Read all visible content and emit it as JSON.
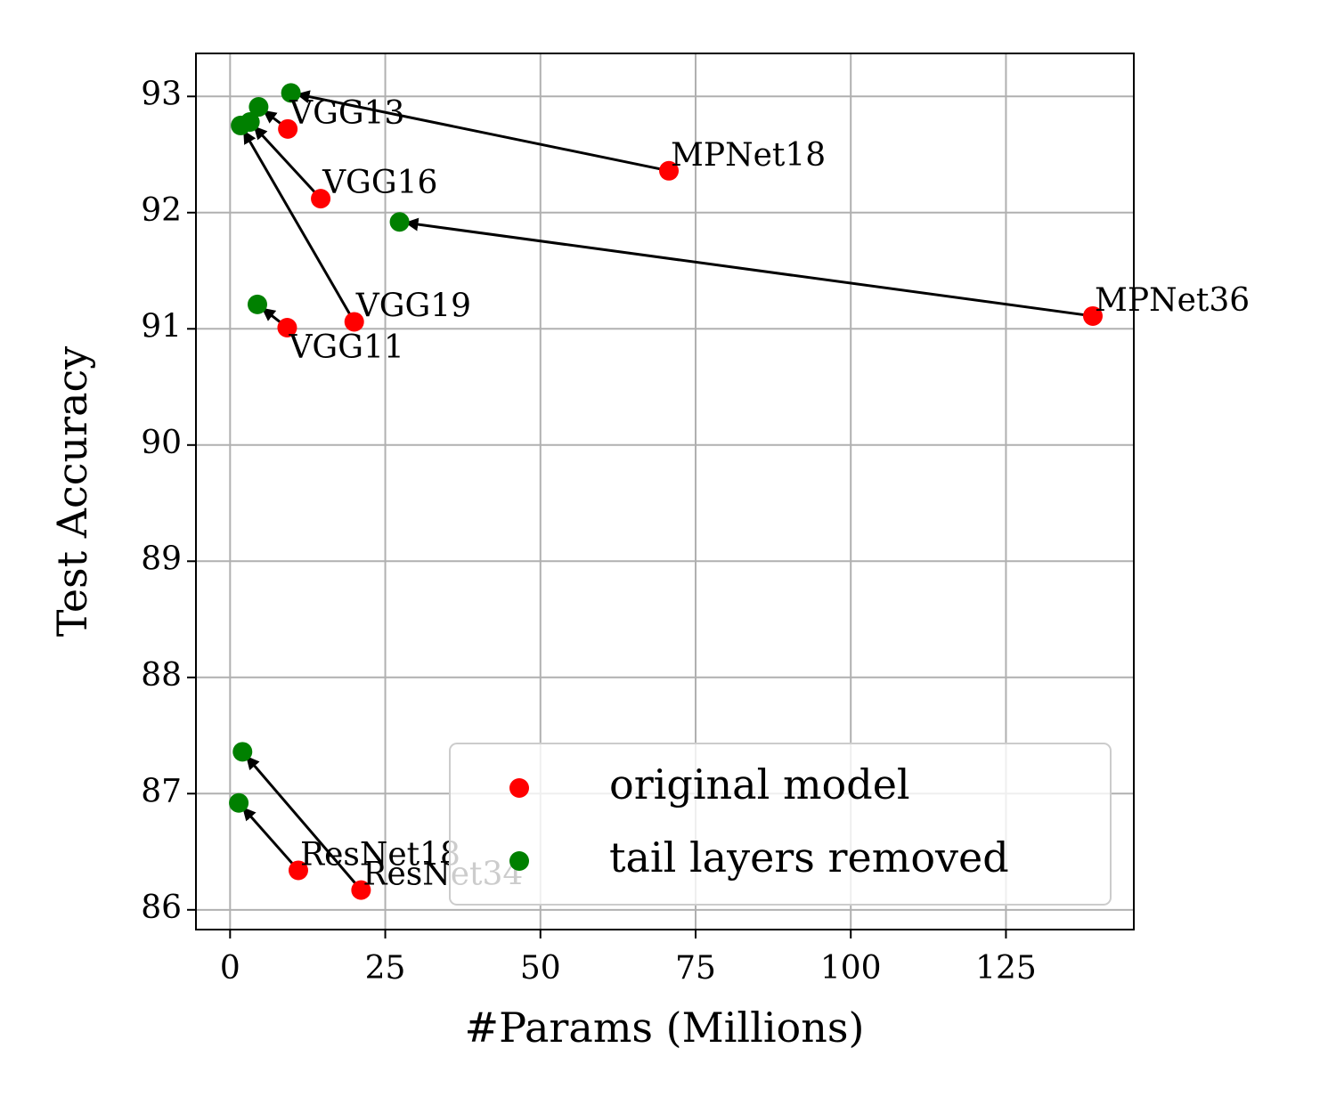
{
  "chart_data": {
    "type": "scatter",
    "xlabel": "#Params (Millions)",
    "ylabel": "Test Accuracy",
    "xlim": [
      -5.5,
      145.6
    ],
    "ylim": [
      85.83,
      93.37
    ],
    "xticks": [
      0,
      25,
      50,
      75,
      100,
      125
    ],
    "yticks": [
      86,
      87,
      88,
      89,
      90,
      91,
      92,
      93
    ],
    "grid": true,
    "legend": "lower right",
    "point_labels": [
      "VGG13",
      "MPNet18",
      "VGG16",
      "MPNet36",
      "VGG19",
      "VGG11",
      "ResNet18",
      "ResNet34"
    ],
    "series": [
      {
        "name": "original model",
        "color": "#ff0000",
        "x": [
          9.3,
          70.7,
          14.6,
          139.0,
          20.0,
          9.2,
          11.0,
          21.1
        ],
        "values": [
          92.72,
          92.36,
          92.12,
          91.11,
          91.06,
          91.01,
          86.34,
          86.17
        ]
      },
      {
        "name": "tail layers removed",
        "color": "#008000",
        "x": [
          4.6,
          9.8,
          3.2,
          27.3,
          1.7,
          4.4,
          1.4,
          2.0
        ],
        "values": [
          92.91,
          93.03,
          92.78,
          91.92,
          92.75,
          91.21,
          86.92,
          87.36
        ]
      }
    ]
  }
}
